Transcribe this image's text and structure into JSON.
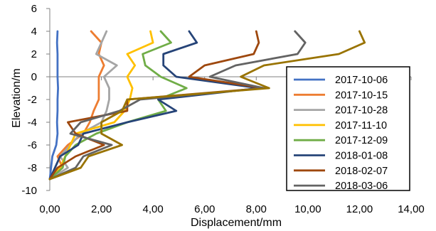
{
  "chart_data": {
    "type": "line",
    "title": "",
    "xlabel": "Displacement/mm",
    "ylabel": "Elevation/m",
    "xlim": [
      0,
      14
    ],
    "ylim": [
      -10,
      6
    ],
    "x_ticks": [
      "0,00",
      "2,00",
      "4,00",
      "6,00",
      "8,00",
      "10,00",
      "12,00",
      "14,00"
    ],
    "y_ticks": [
      "-10",
      "-8",
      "-6",
      "-4",
      "-2",
      "0",
      "2",
      "4",
      "6"
    ],
    "x_tick_values": [
      0,
      2,
      4,
      6,
      8,
      10,
      12,
      14
    ],
    "y_tick_values": [
      -10,
      -8,
      -6,
      -4,
      -2,
      0,
      2,
      4,
      6
    ],
    "grid": false,
    "legend_position": "right",
    "series": [
      {
        "name": "2017-10-06",
        "color": "#4472C4",
        "points": [
          [
            0.3,
            4
          ],
          [
            0.28,
            3
          ],
          [
            0.3,
            2
          ],
          [
            0.3,
            1
          ],
          [
            0.3,
            0
          ],
          [
            0.32,
            -1
          ],
          [
            0.3,
            -2
          ],
          [
            0.3,
            -3
          ],
          [
            0.28,
            -4
          ],
          [
            0.3,
            -5
          ],
          [
            0.25,
            -6
          ],
          [
            0.1,
            -7
          ],
          [
            0.05,
            -8
          ],
          [
            0,
            -9
          ]
        ]
      },
      {
        "name": "2017-10-15",
        "color": "#ED7D31",
        "points": [
          [
            1.6,
            4
          ],
          [
            2.0,
            3
          ],
          [
            1.9,
            2
          ],
          [
            2.1,
            1
          ],
          [
            1.9,
            0
          ],
          [
            1.9,
            -1
          ],
          [
            1.9,
            -2
          ],
          [
            1.7,
            -3
          ],
          [
            1.55,
            -4
          ],
          [
            1.3,
            -5
          ],
          [
            0.7,
            -6
          ],
          [
            0.3,
            -7
          ],
          [
            0.5,
            -8
          ],
          [
            0,
            -9
          ]
        ]
      },
      {
        "name": "2017-10-28",
        "color": "#A5A5A5",
        "points": [
          [
            2.2,
            4
          ],
          [
            2.0,
            3
          ],
          [
            1.8,
            2
          ],
          [
            2.6,
            1
          ],
          [
            2.1,
            0
          ],
          [
            2.3,
            -1
          ],
          [
            2.3,
            -2
          ],
          [
            2.2,
            -3
          ],
          [
            2.0,
            -4
          ],
          [
            1.2,
            -5
          ],
          [
            0.8,
            -6
          ],
          [
            0.4,
            -7
          ],
          [
            0.7,
            -8
          ],
          [
            0,
            -9
          ]
        ]
      },
      {
        "name": "2017-11-10",
        "color": "#FFC000",
        "points": [
          [
            3.9,
            4
          ],
          [
            4.0,
            3
          ],
          [
            3.0,
            2
          ],
          [
            3.3,
            1
          ],
          [
            3.0,
            0
          ],
          [
            3.2,
            -1
          ],
          [
            3.1,
            -2
          ],
          [
            2.9,
            -3
          ],
          [
            2.5,
            -4
          ],
          [
            1.0,
            -5
          ],
          [
            0.8,
            -6
          ],
          [
            0.6,
            -7
          ],
          [
            0.4,
            -8
          ],
          [
            0,
            -9
          ]
        ]
      },
      {
        "name": "2017-12-09",
        "color": "#70AD47",
        "points": [
          [
            4.3,
            4
          ],
          [
            4.7,
            3
          ],
          [
            3.6,
            2
          ],
          [
            3.7,
            1
          ],
          [
            4.3,
            0
          ],
          [
            5.3,
            -1
          ],
          [
            4.2,
            -2
          ],
          [
            4.5,
            -3
          ],
          [
            3.0,
            -4
          ],
          [
            1.8,
            -5
          ],
          [
            1.0,
            -6
          ],
          [
            0.6,
            -7
          ],
          [
            0.5,
            -8
          ],
          [
            0,
            -9
          ]
        ]
      },
      {
        "name": "2018-01-08",
        "color": "#264478",
        "points": [
          [
            5.4,
            4
          ],
          [
            5.7,
            3
          ],
          [
            4.4,
            2
          ],
          [
            4.4,
            1
          ],
          [
            4.9,
            0
          ],
          [
            8.1,
            -1
          ],
          [
            4.2,
            -2
          ],
          [
            4.9,
            -3
          ],
          [
            3.0,
            -4
          ],
          [
            1.3,
            -5
          ],
          [
            1.1,
            -6
          ],
          [
            0.4,
            -7
          ],
          [
            0.2,
            -8
          ],
          [
            0,
            -9
          ]
        ]
      },
      {
        "name": "2018-02-07",
        "color": "#9E480E",
        "points": [
          [
            8.0,
            4
          ],
          [
            8.1,
            3
          ],
          [
            7.9,
            2
          ],
          [
            6.0,
            1
          ],
          [
            5.4,
            0
          ],
          [
            8.3,
            -1
          ],
          [
            3.0,
            -2
          ],
          [
            3.0,
            -3
          ],
          [
            0.7,
            -4
          ],
          [
            1.0,
            -5
          ],
          [
            2.1,
            -6
          ],
          [
            1.0,
            -7
          ],
          [
            0.3,
            -8
          ],
          [
            0,
            -9
          ]
        ]
      },
      {
        "name": "2018-03-06",
        "color": "#636363",
        "points": [
          [
            9.5,
            4
          ],
          [
            9.9,
            3
          ],
          [
            9.6,
            2
          ],
          [
            7.2,
            1
          ],
          [
            6.2,
            0
          ],
          [
            8.3,
            -1
          ],
          [
            3.5,
            -2
          ],
          [
            2.7,
            -3
          ],
          [
            1.2,
            -4
          ],
          [
            0.8,
            -5
          ],
          [
            2.4,
            -6
          ],
          [
            1.3,
            -7
          ],
          [
            1.0,
            -8
          ],
          [
            0,
            -9
          ]
        ]
      },
      {
        "name": "",
        "color": "#997300",
        "points": [
          [
            12.0,
            4
          ],
          [
            12.2,
            3
          ],
          [
            11.2,
            2
          ],
          [
            8.3,
            1
          ],
          [
            7.4,
            0
          ],
          [
            8.5,
            -1
          ],
          [
            3.0,
            -2
          ],
          [
            2.8,
            -3
          ],
          [
            2.0,
            -4
          ],
          [
            2.0,
            -5
          ],
          [
            2.8,
            -6
          ],
          [
            1.5,
            -7
          ],
          [
            1.2,
            -8
          ],
          [
            0,
            -9
          ]
        ]
      }
    ],
    "legend": [
      "2017-10-06",
      "2017-10-15",
      "2017-10-28",
      "2017-11-10",
      "2017-12-09",
      "2018-01-08",
      "2018-02-07",
      "2018-03-06"
    ]
  }
}
